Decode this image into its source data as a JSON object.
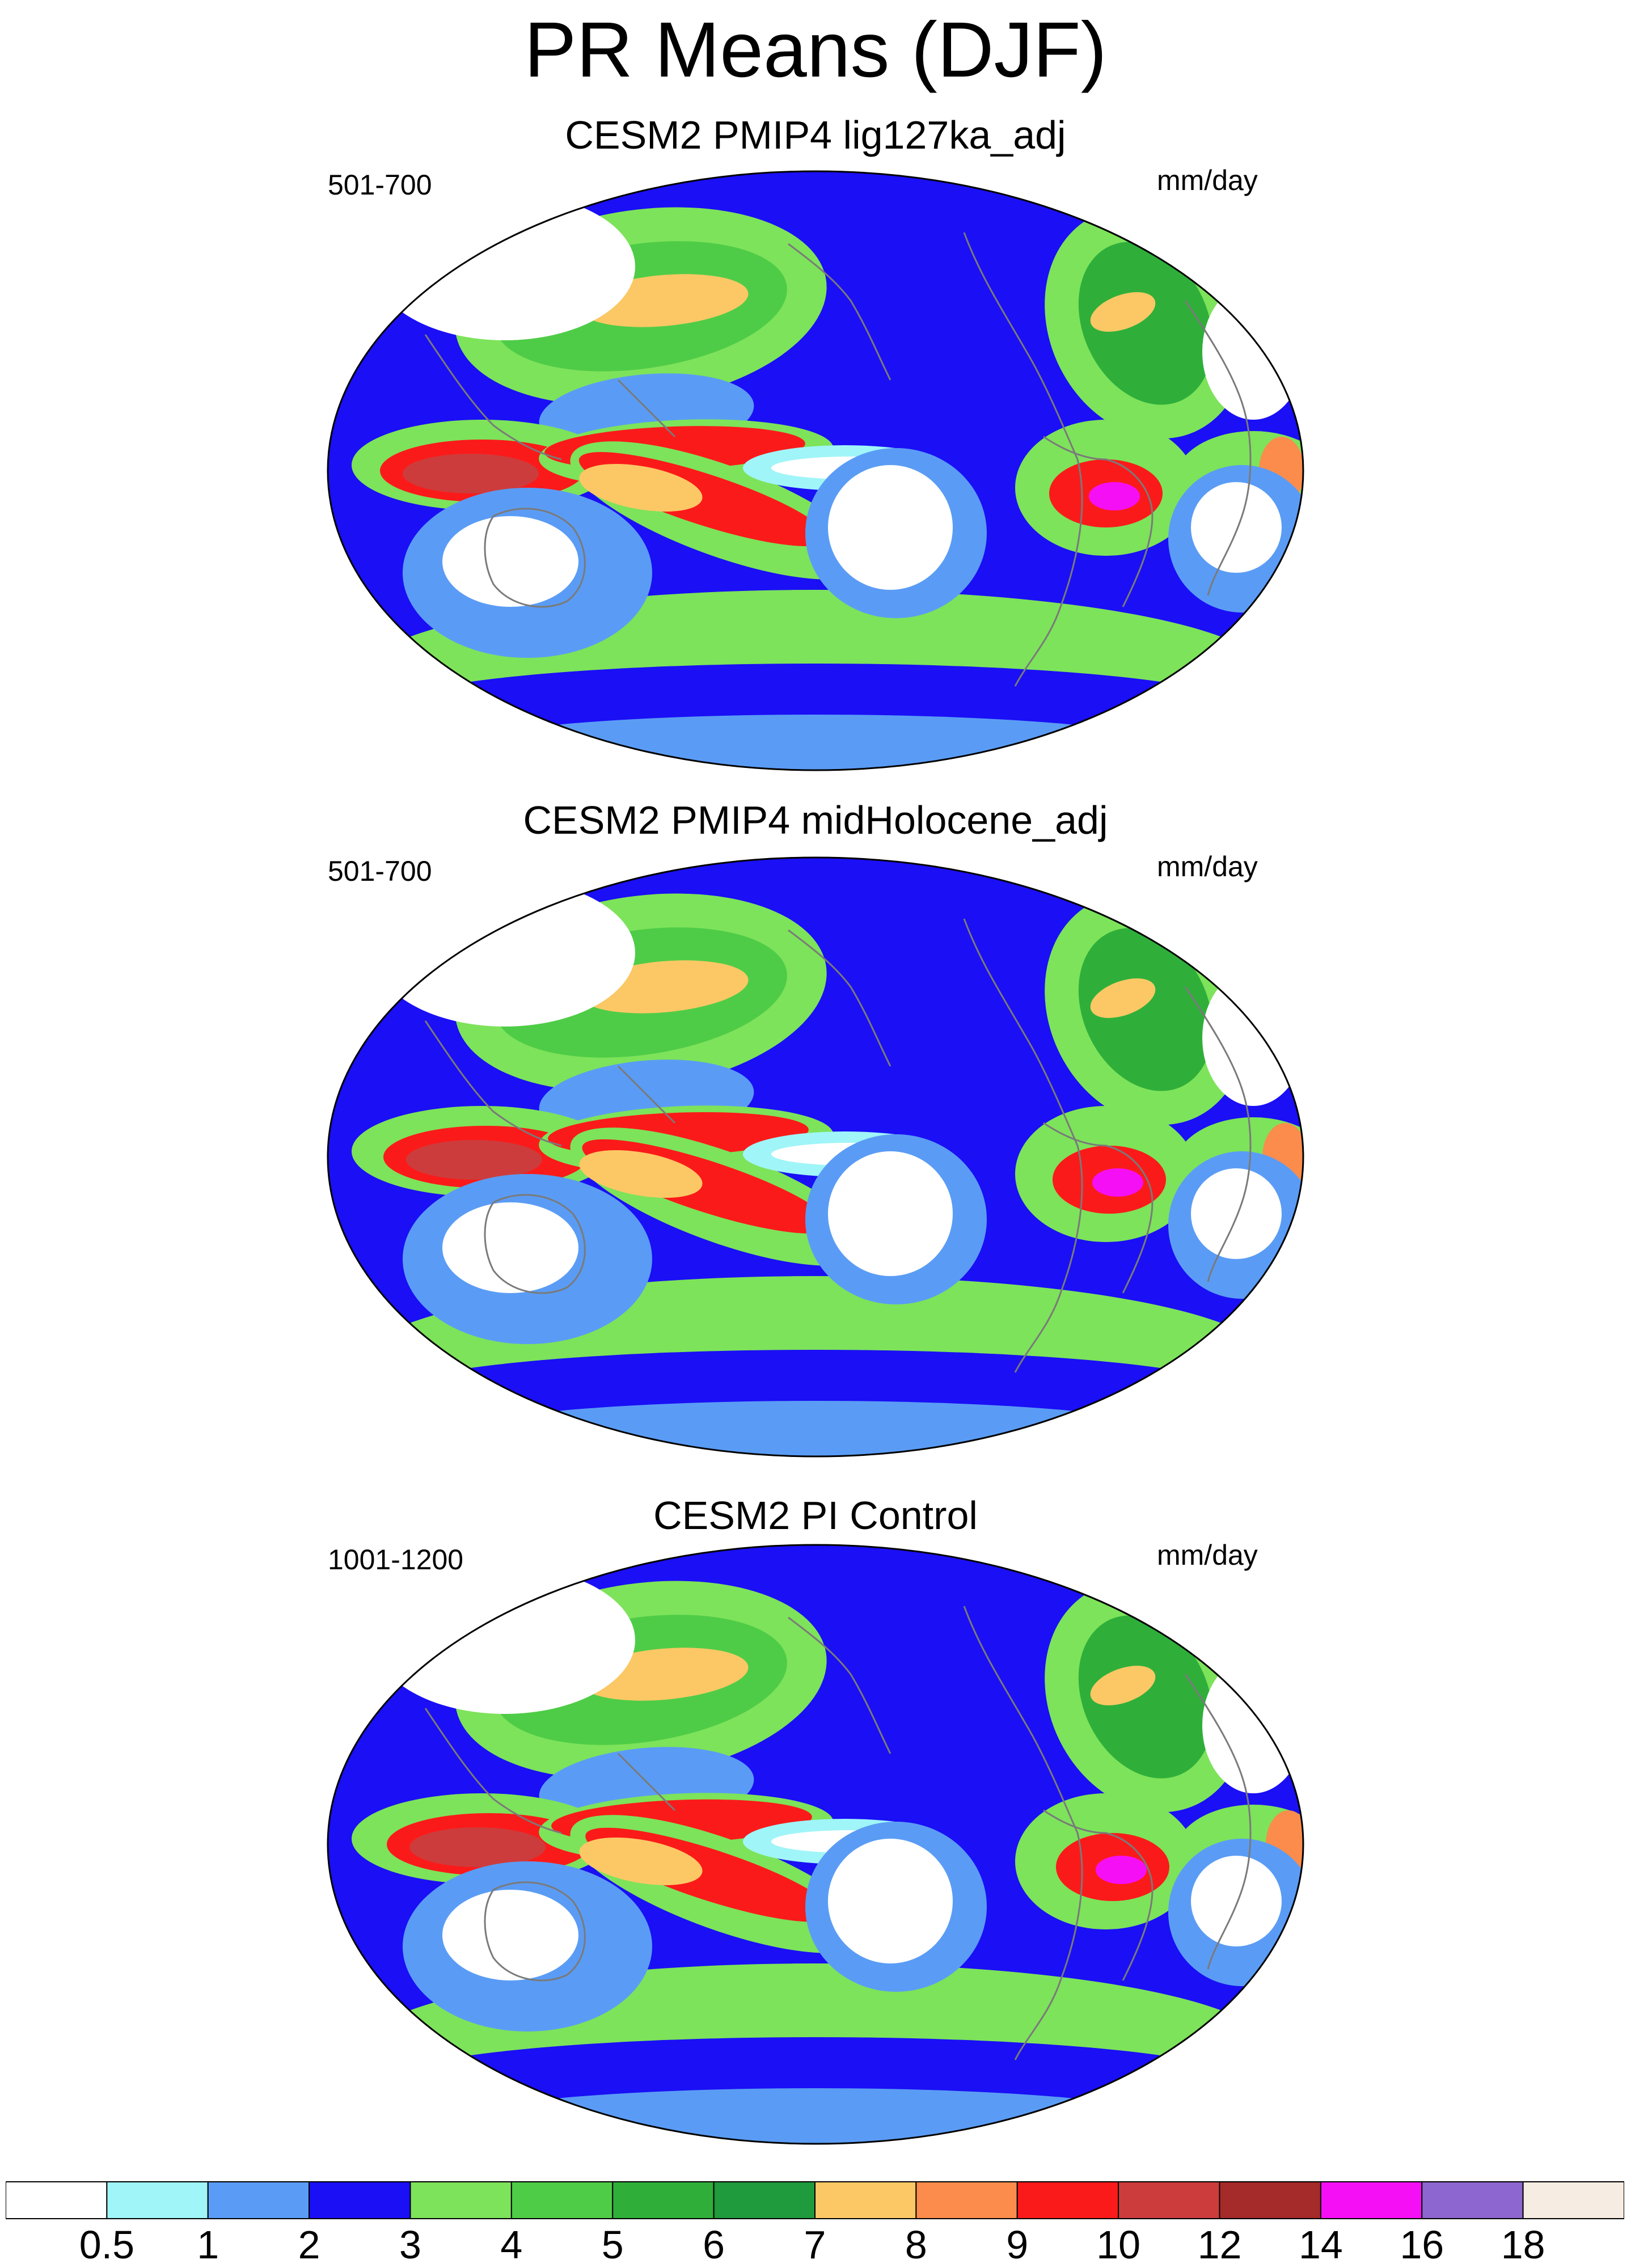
{
  "figure": {
    "title": "PR Means (DJF)"
  },
  "panels": [
    {
      "title": "CESM2 PMIP4 lig127ka_adj",
      "period": "501-700",
      "units": "mm/day"
    },
    {
      "title": "CESM2 PMIP4 midHolocene_adj",
      "period": "501-700",
      "units": "mm/day"
    },
    {
      "title": "CESM2 PI Control",
      "period": "1001-1200",
      "units": "mm/day"
    }
  ],
  "colorbar": {
    "levels": [
      "0.5",
      "1",
      "2",
      "3",
      "4",
      "5",
      "6",
      "7",
      "8",
      "9",
      "10",
      "12",
      "14",
      "16",
      "18"
    ],
    "colors": [
      "#ffffff",
      "#a0f5f8",
      "#5a9cf5",
      "#1a0ff5",
      "#7de35a",
      "#4fcc47",
      "#2faf3a",
      "#1f9a3c",
      "#fbc865",
      "#fb8c4b",
      "#fb1a1a",
      "#cd3c3c",
      "#a52a2a",
      "#f50ff5",
      "#8d66cf",
      "#f7ece2"
    ]
  },
  "map_colors": {
    "land_outline": "#7a7a7a",
    "map_border": "#000000"
  }
}
